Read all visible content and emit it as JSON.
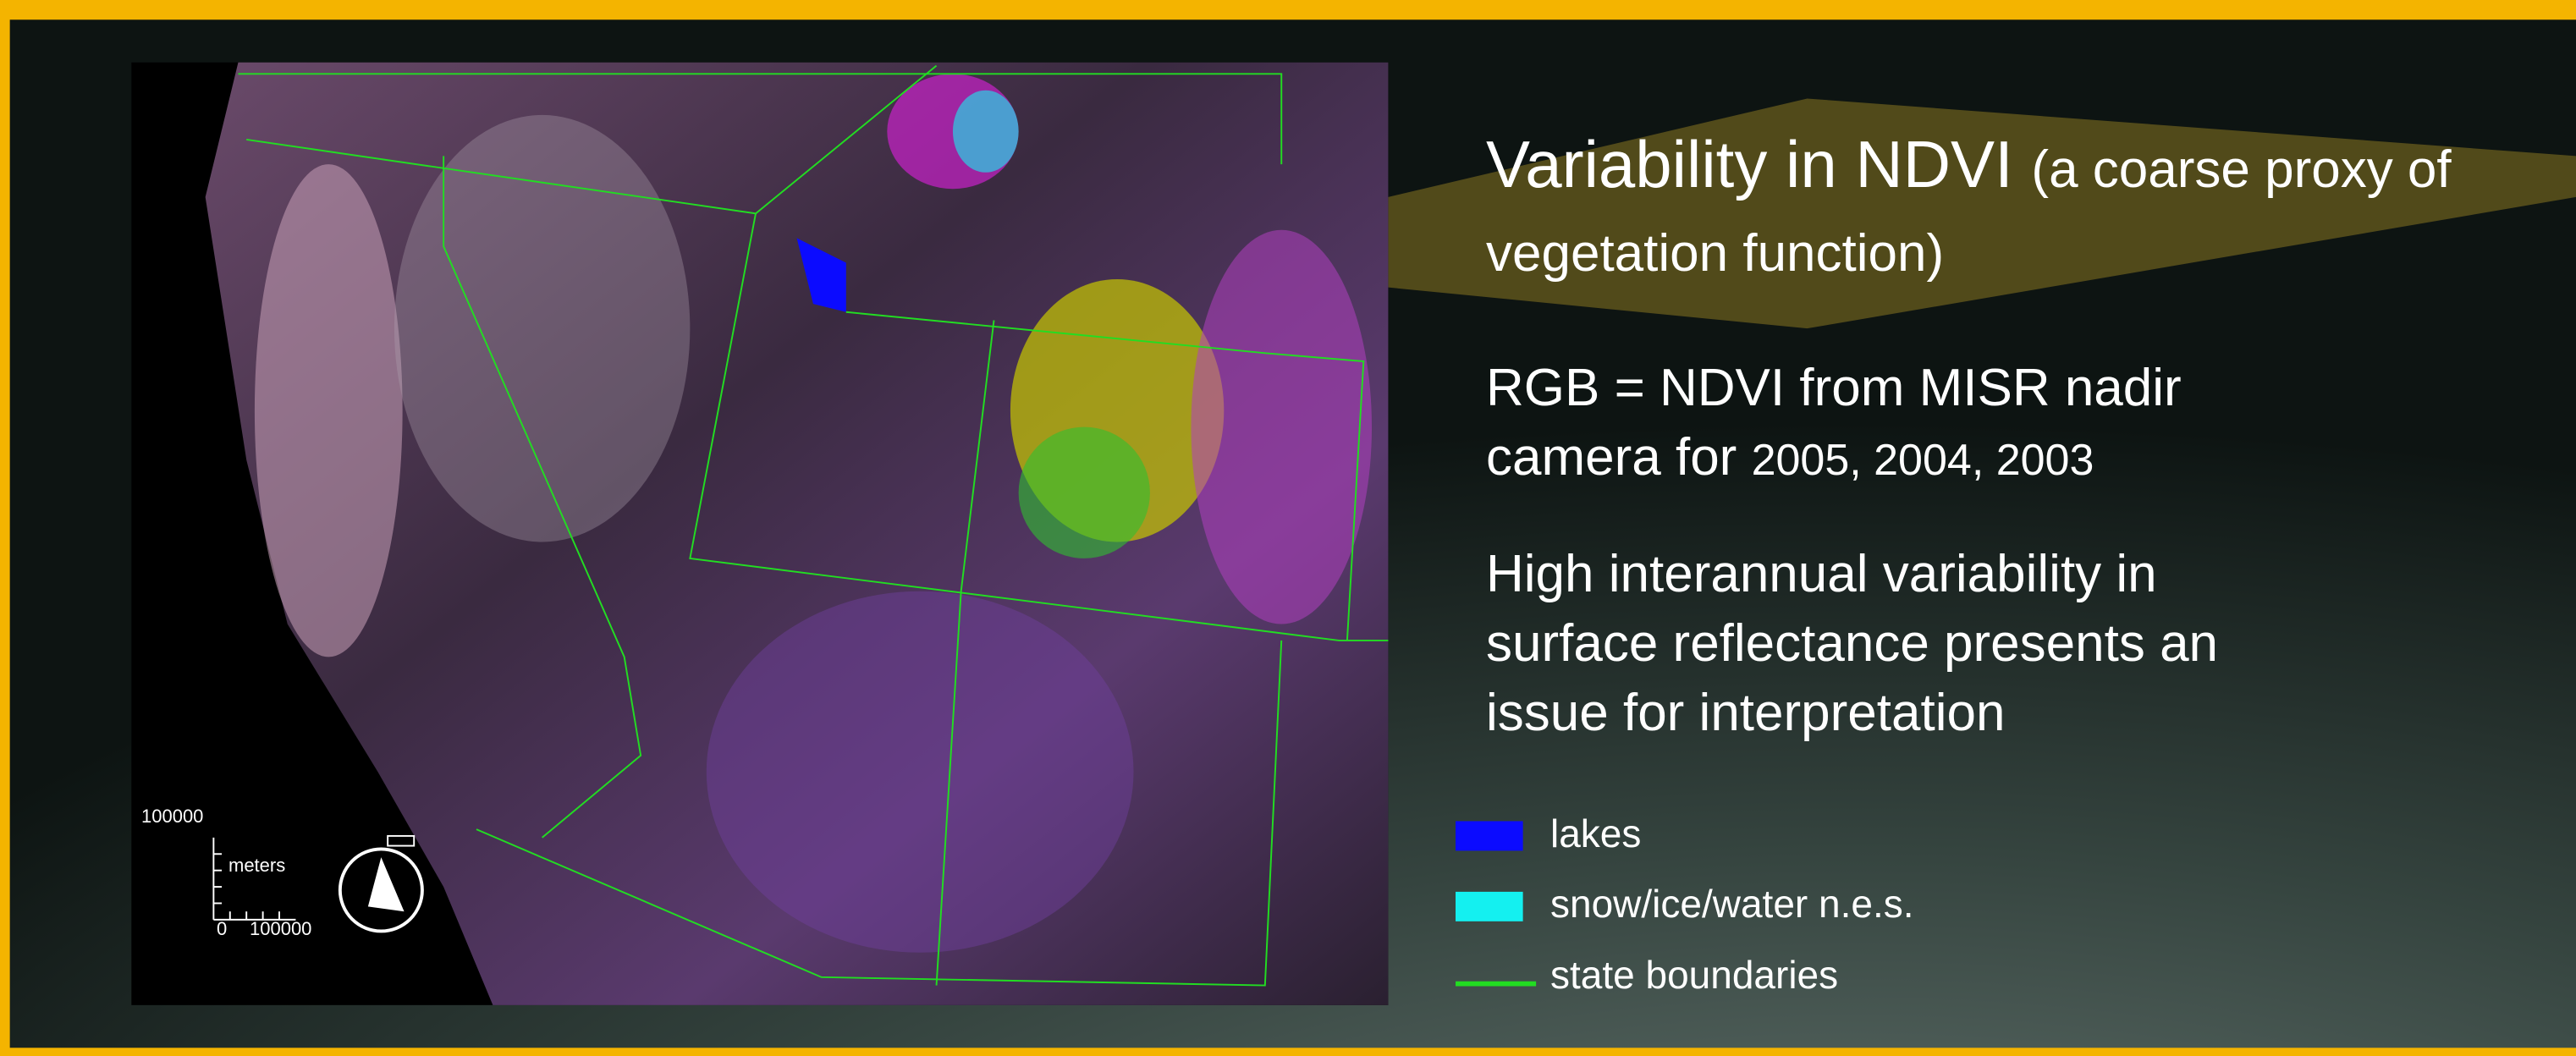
{
  "title": {
    "main": "Variability in NDVI",
    "aside": "(a coarse proxy of vegetation function)"
  },
  "paragraphs": [
    {
      "text": "RGB = NDVI from MISR nadir camera for",
      "years": "2005, 2004, 2003"
    },
    {
      "text": "High interannual variability in surface reflectance presents an issue for interpretation"
    }
  ],
  "legend": [
    {
      "label": "lakes",
      "color": "#0b0bff",
      "shape": "box"
    },
    {
      "label": "snow/ice/water n.e.s.",
      "color": "#14f0f0",
      "shape": "box"
    },
    {
      "label": "state boundaries",
      "color": "#22dd22",
      "shape": "line"
    }
  ],
  "map": {
    "scale": {
      "top_label": "100000",
      "unit": "meters",
      "origin_label": "0",
      "bottom_label": "100000"
    }
  }
}
